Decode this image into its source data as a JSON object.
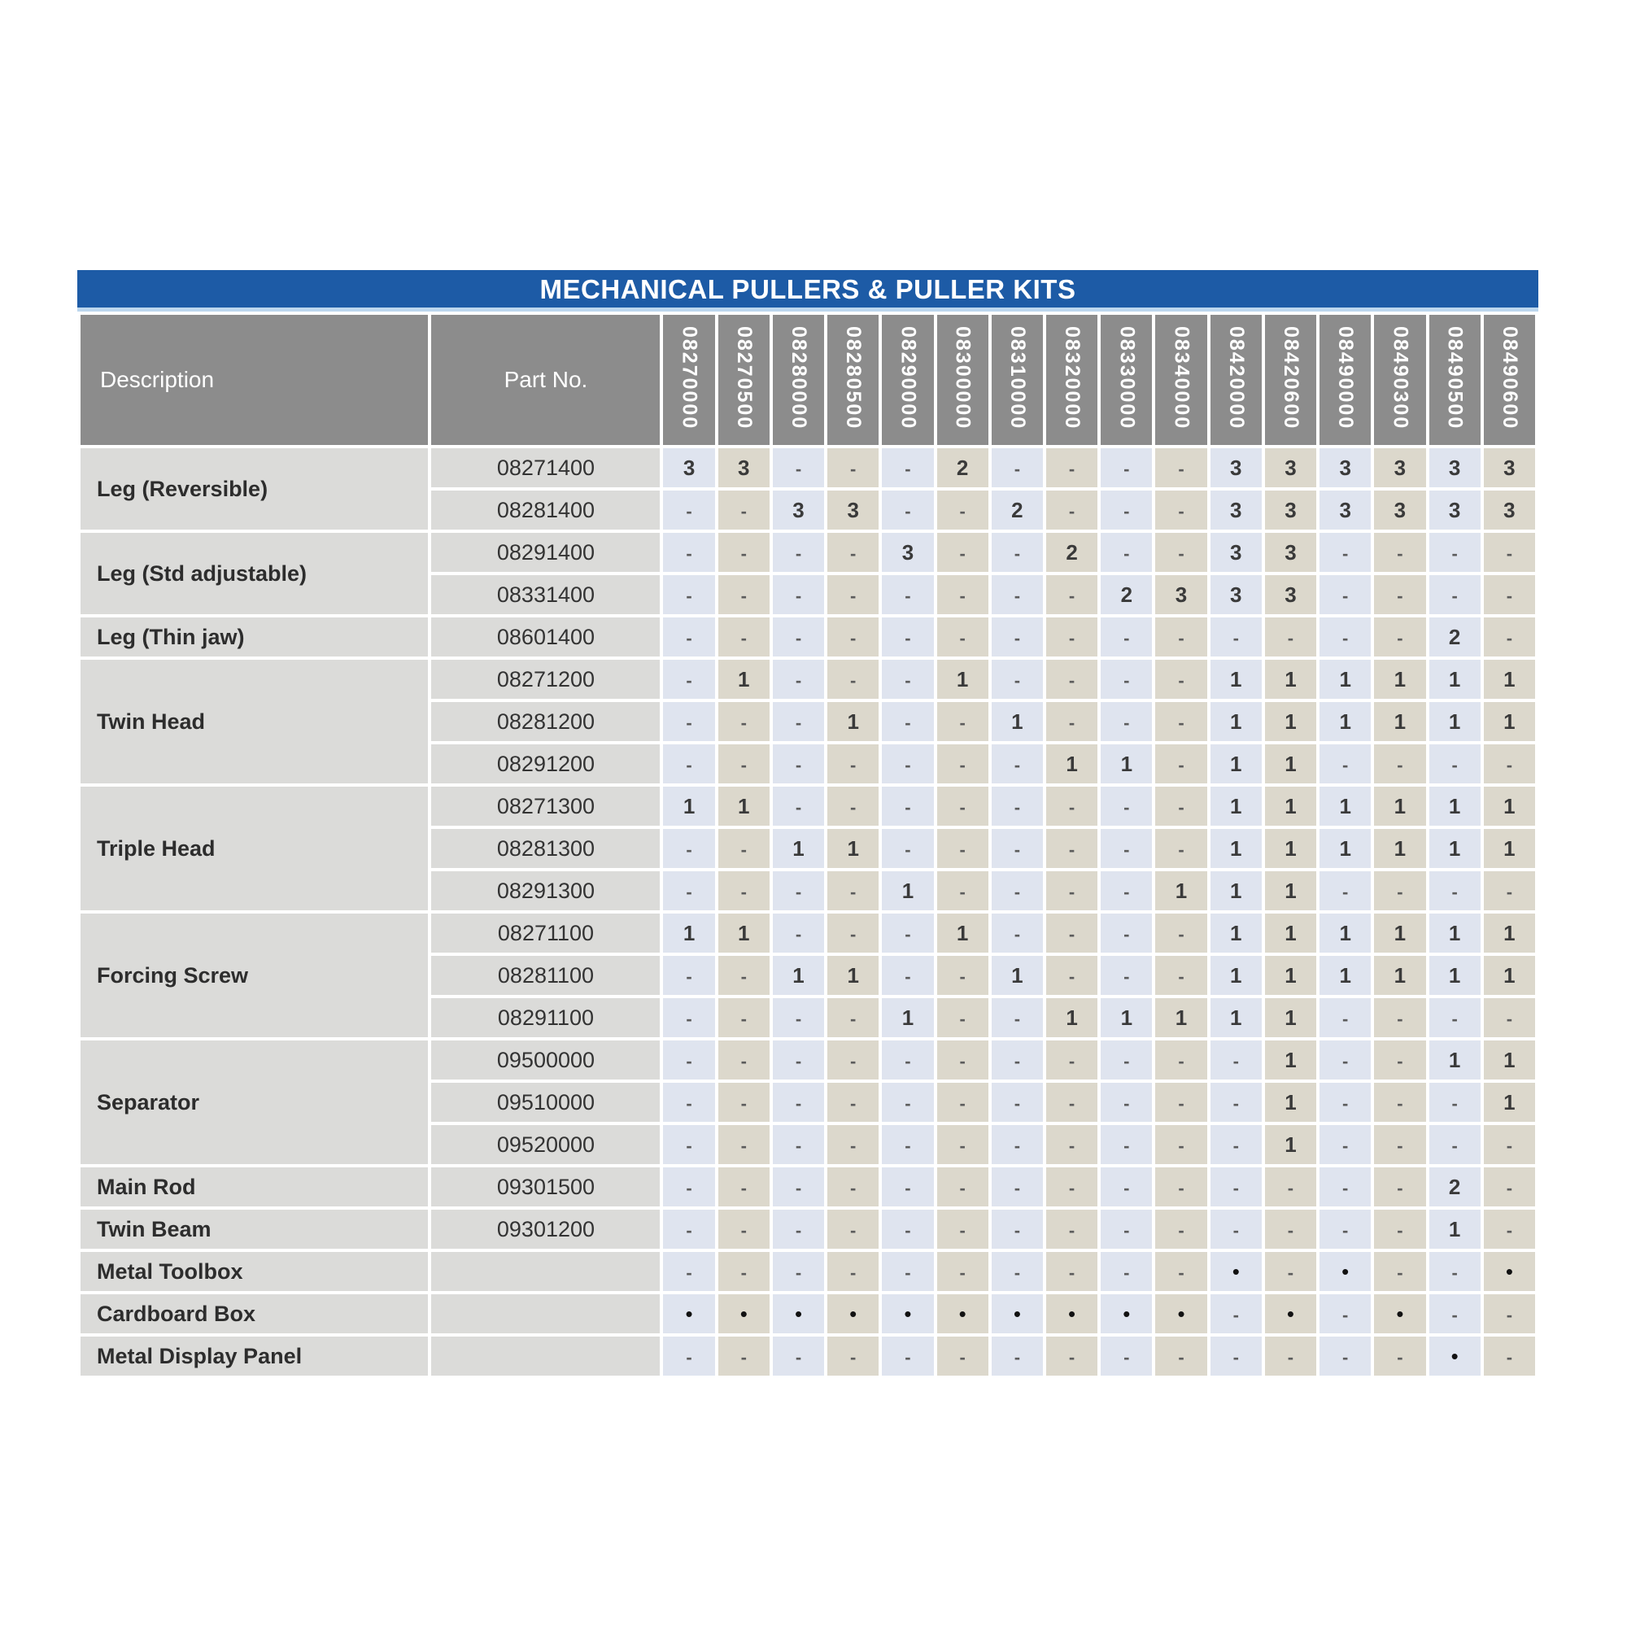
{
  "title": "MECHANICAL PULLERS & PULLER KITS",
  "columns": {
    "description": "Description",
    "part_no": "Part No.",
    "kits": [
      "08270000",
      "08270500",
      "08280000",
      "08280500",
      "08290000",
      "08300000",
      "08310000",
      "08320000",
      "08330000",
      "08340000",
      "08420000",
      "08420600",
      "08490000",
      "08490300",
      "08490500",
      "08490600"
    ]
  },
  "groups": [
    {
      "description": "Leg (Reversible)",
      "rows": [
        {
          "part_no": "08271400",
          "values": [
            "3",
            "3",
            "-",
            "-",
            "-",
            "2",
            "-",
            "-",
            "-",
            "-",
            "3",
            "3",
            "3",
            "3",
            "3",
            "3"
          ]
        },
        {
          "part_no": "08281400",
          "values": [
            "-",
            "-",
            "3",
            "3",
            "-",
            "-",
            "2",
            "-",
            "-",
            "-",
            "3",
            "3",
            "3",
            "3",
            "3",
            "3"
          ]
        }
      ]
    },
    {
      "description": "Leg (Std adjustable)",
      "rows": [
        {
          "part_no": "08291400",
          "values": [
            "-",
            "-",
            "-",
            "-",
            "3",
            "-",
            "-",
            "2",
            "-",
            "-",
            "3",
            "3",
            "-",
            "-",
            "-",
            "-"
          ]
        },
        {
          "part_no": "08331400",
          "values": [
            "-",
            "-",
            "-",
            "-",
            "-",
            "-",
            "-",
            "-",
            "2",
            "3",
            "3",
            "3",
            "-",
            "-",
            "-",
            "-"
          ]
        }
      ]
    },
    {
      "description": "Leg (Thin jaw)",
      "rows": [
        {
          "part_no": "08601400",
          "values": [
            "-",
            "-",
            "-",
            "-",
            "-",
            "-",
            "-",
            "-",
            "-",
            "-",
            "-",
            "-",
            "-",
            "-",
            "2",
            "-"
          ]
        }
      ]
    },
    {
      "description": "Twin Head",
      "rows": [
        {
          "part_no": "08271200",
          "values": [
            "-",
            "1",
            "-",
            "-",
            "-",
            "1",
            "-",
            "-",
            "-",
            "-",
            "1",
            "1",
            "1",
            "1",
            "1",
            "1"
          ]
        },
        {
          "part_no": "08281200",
          "values": [
            "-",
            "-",
            "-",
            "1",
            "-",
            "-",
            "1",
            "-",
            "-",
            "-",
            "1",
            "1",
            "1",
            "1",
            "1",
            "1"
          ]
        },
        {
          "part_no": "08291200",
          "values": [
            "-",
            "-",
            "-",
            "-",
            "-",
            "-",
            "-",
            "1",
            "1",
            "-",
            "1",
            "1",
            "-",
            "-",
            "-",
            "-"
          ]
        }
      ]
    },
    {
      "description": "Triple Head",
      "rows": [
        {
          "part_no": "08271300",
          "values": [
            "1",
            "1",
            "-",
            "-",
            "-",
            "-",
            "-",
            "-",
            "-",
            "-",
            "1",
            "1",
            "1",
            "1",
            "1",
            "1"
          ]
        },
        {
          "part_no": "08281300",
          "values": [
            "-",
            "-",
            "1",
            "1",
            "-",
            "-",
            "-",
            "-",
            "-",
            "-",
            "1",
            "1",
            "1",
            "1",
            "1",
            "1"
          ]
        },
        {
          "part_no": "08291300",
          "values": [
            "-",
            "-",
            "-",
            "-",
            "1",
            "-",
            "-",
            "-",
            "-",
            "1",
            "1",
            "1",
            "-",
            "-",
            "-",
            "-"
          ]
        }
      ]
    },
    {
      "description": "Forcing Screw",
      "rows": [
        {
          "part_no": "08271100",
          "values": [
            "1",
            "1",
            "-",
            "-",
            "-",
            "1",
            "-",
            "-",
            "-",
            "-",
            "1",
            "1",
            "1",
            "1",
            "1",
            "1"
          ]
        },
        {
          "part_no": "08281100",
          "values": [
            "-",
            "-",
            "1",
            "1",
            "-",
            "-",
            "1",
            "-",
            "-",
            "-",
            "1",
            "1",
            "1",
            "1",
            "1",
            "1"
          ]
        },
        {
          "part_no": "08291100",
          "values": [
            "-",
            "-",
            "-",
            "-",
            "1",
            "-",
            "-",
            "1",
            "1",
            "1",
            "1",
            "1",
            "-",
            "-",
            "-",
            "-"
          ]
        }
      ]
    },
    {
      "description": "Separator",
      "rows": [
        {
          "part_no": "09500000",
          "values": [
            "-",
            "-",
            "-",
            "-",
            "-",
            "-",
            "-",
            "-",
            "-",
            "-",
            "-",
            "1",
            "-",
            "-",
            "1",
            "1"
          ]
        },
        {
          "part_no": "09510000",
          "values": [
            "-",
            "-",
            "-",
            "-",
            "-",
            "-",
            "-",
            "-",
            "-",
            "-",
            "-",
            "1",
            "-",
            "-",
            "-",
            "1"
          ]
        },
        {
          "part_no": "09520000",
          "values": [
            "-",
            "-",
            "-",
            "-",
            "-",
            "-",
            "-",
            "-",
            "-",
            "-",
            "-",
            "1",
            "-",
            "-",
            "-",
            "-"
          ]
        }
      ]
    },
    {
      "description": "Main Rod",
      "rows": [
        {
          "part_no": "09301500",
          "values": [
            "-",
            "-",
            "-",
            "-",
            "-",
            "-",
            "-",
            "-",
            "-",
            "-",
            "-",
            "-",
            "-",
            "-",
            "2",
            "-"
          ]
        }
      ]
    },
    {
      "description": "Twin Beam",
      "rows": [
        {
          "part_no": "09301200",
          "values": [
            "-",
            "-",
            "-",
            "-",
            "-",
            "-",
            "-",
            "-",
            "-",
            "-",
            "-",
            "-",
            "-",
            "-",
            "1",
            "-"
          ]
        }
      ]
    },
    {
      "description": "Metal Toolbox",
      "rows": [
        {
          "part_no": "",
          "values": [
            "-",
            "-",
            "-",
            "-",
            "-",
            "-",
            "-",
            "-",
            "-",
            "-",
            "•",
            "-",
            "•",
            "-",
            "-",
            "•"
          ]
        }
      ]
    },
    {
      "description": "Cardboard Box",
      "rows": [
        {
          "part_no": "",
          "values": [
            "•",
            "•",
            "•",
            "•",
            "•",
            "•",
            "•",
            "•",
            "•",
            "•",
            "-",
            "•",
            "-",
            "•",
            "-",
            "-"
          ]
        }
      ]
    },
    {
      "description": "Metal Display Panel",
      "rows": [
        {
          "part_no": "",
          "values": [
            "-",
            "-",
            "-",
            "-",
            "-",
            "-",
            "-",
            "-",
            "-",
            "-",
            "-",
            "-",
            "-",
            "-",
            "•",
            "-"
          ]
        }
      ]
    }
  ],
  "colors": {
    "title_bg": "#1d5ba6",
    "title_divider": "#bdd7ee",
    "header_bg": "#8c8c8c",
    "label_col_bg": "#dbdbd9",
    "kit_col_odd_bg": "#dfe4ef",
    "kit_col_even_bg": "#dcd8cc"
  }
}
